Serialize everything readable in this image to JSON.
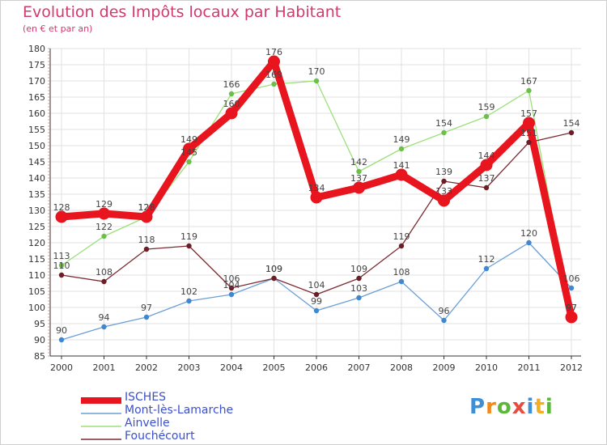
{
  "title": "Evolution des Impôts locaux par Habitant",
  "subtitle": "(en € et par an)",
  "logo_text": "Proxiti",
  "colors": {
    "title": "#d23a6b",
    "legend_text": "#3a4fd3",
    "grid": "#e2e2e2"
  },
  "chart_data": {
    "type": "line",
    "title": "Evolution des Impôts locaux par Habitant",
    "subtitle": "(en € et par an)",
    "xlabel": "",
    "ylabel": "",
    "ylim": [
      85,
      180
    ],
    "y_ticks": [
      85,
      90,
      95,
      100,
      105,
      110,
      115,
      120,
      125,
      130,
      135,
      140,
      145,
      150,
      155,
      160,
      165,
      170,
      175,
      180
    ],
    "grid": true,
    "categories": [
      "2000",
      "2001",
      "2002",
      "2003",
      "2004",
      "2005",
      "2006",
      "2007",
      "2008",
      "2009",
      "2010",
      "2011",
      "2012"
    ],
    "series": [
      {
        "name": "Mont-lès-Lamarche",
        "color": "#6a9fd6",
        "marker_color": "#3f87cf",
        "values": [
          90,
          94,
          97,
          102,
          104,
          109,
          99,
          103,
          108,
          96,
          112,
          120,
          106
        ],
        "labels": [
          "90",
          "94",
          "97",
          "102",
          "104",
          "109",
          "99",
          "103",
          "108",
          "96",
          "112",
          "120",
          "106"
        ]
      },
      {
        "name": "Ainvelle",
        "color": "#9be07a",
        "marker_color": "#6cc04a",
        "values": [
          113,
          122,
          128,
          145,
          166,
          169,
          170,
          142,
          149,
          154,
          159,
          167,
          97
        ],
        "labels": [
          "113",
          "122",
          "128",
          "145",
          "166",
          "169",
          "170",
          "142",
          "149",
          "154",
          "159",
          "167",
          "97"
        ]
      },
      {
        "name": "Fouchécourt",
        "color": "#7a2a32",
        "marker_color": "#6b1e26",
        "values": [
          110,
          108,
          118,
          119,
          106,
          109,
          104,
          109,
          119,
          139,
          137,
          151,
          154
        ],
        "labels": [
          "110",
          "108",
          "118",
          "119",
          "106",
          "109",
          "104",
          "109",
          "119",
          "139",
          "137",
          "151",
          "154"
        ]
      },
      {
        "name": "ISCHES",
        "color": "#e8141e",
        "marker_color": "#e8141e",
        "values": [
          128,
          129,
          128,
          149,
          160,
          176,
          134,
          137,
          141,
          133,
          144,
          157,
          97
        ],
        "labels": [
          "128",
          "129",
          "128",
          "149",
          "160",
          "176",
          "134",
          "137",
          "141",
          "133",
          "144",
          "157",
          "97"
        ]
      }
    ],
    "legend": [
      {
        "name": "ISCHES",
        "color": "#e8141e"
      },
      {
        "name": "Mont-lès-Lamarche",
        "color": "#6a9fd6"
      },
      {
        "name": "Ainvelle",
        "color": "#9be07a"
      },
      {
        "name": "Fouchécourt",
        "color": "#7a2a32"
      }
    ],
    "legend_position": "bottom-left"
  }
}
